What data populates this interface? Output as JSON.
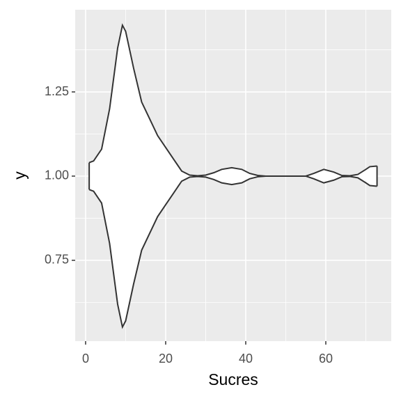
{
  "chart_data": {
    "type": "violin",
    "x_label": "Sucres",
    "y_label": "y",
    "center": 1,
    "x": [
      0.9,
      2,
      4,
      6,
      8,
      9.2,
      10,
      12,
      14,
      16,
      18,
      20,
      22,
      24,
      26,
      28,
      30,
      32,
      34,
      36.5,
      39,
      41,
      43,
      45,
      55,
      57,
      59.5,
      62,
      64,
      66,
      68,
      70,
      71,
      72.8
    ],
    "half_width": [
      0.04,
      0.045,
      0.08,
      0.2,
      0.38,
      0.448,
      0.43,
      0.32,
      0.22,
      0.17,
      0.12,
      0.085,
      0.05,
      0.015,
      0.003,
      0.001,
      0.003,
      0.01,
      0.02,
      0.025,
      0.02,
      0.008,
      0.002,
      0,
      0,
      0.008,
      0.02,
      0.012,
      0.002,
      0.001,
      0.005,
      0.02,
      0.028,
      0.03
    ],
    "fill": "#ffffff",
    "line_color": "#333333",
    "xlim": [
      -2.6,
      76.35
    ],
    "ylim": [
      0.51,
      1.494
    ],
    "xticks": [
      0,
      20,
      40,
      60
    ],
    "yticks": [
      0.75,
      {
        "value": 1,
        "label": "1.00"
      },
      1.25
    ],
    "x_minor": [
      10,
      30,
      50,
      70
    ],
    "y_minor": [
      0.625,
      0.875,
      1.125,
      1.375
    ],
    "grid": true
  }
}
